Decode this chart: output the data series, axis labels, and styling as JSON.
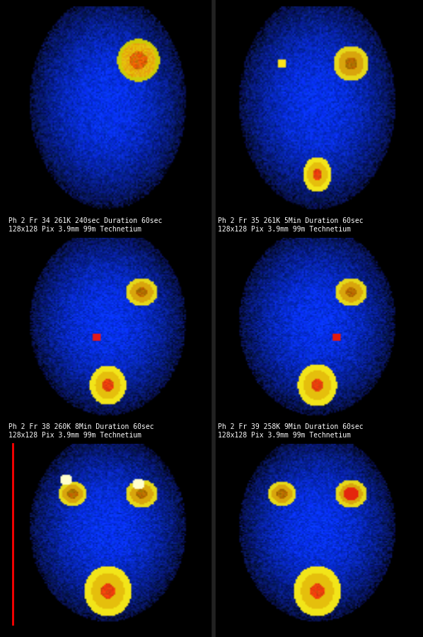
{
  "background_color": "#000000",
  "panel_labels": [
    "Ph 2 Fr 34 261K 240sec Duration 60sec\n128x128 Pix 3.9mm 99m Technetium",
    "Ph 2 Fr 35 261K 5Min Duration 60sec\n128x128 Pix 3.9mm 99m Technetium",
    "Ph 2 Fr 38 260K 8Min Duration 60sec\n128x128 Pix 3.9mm 99m Technetium",
    "Ph 2 Fr 39 258K 9Min Duration 60sec\n128x128 Pix 3.9mm 99m Technetium",
    "",
    ""
  ],
  "label_color": "#ffffff",
  "label_fontsize": 7,
  "separator_color": "#222222",
  "red_line_color": "#ff0000",
  "grid_rows": 3,
  "grid_cols": 2,
  "bladder_fills": [
    0.0,
    0.3,
    0.5,
    0.6,
    0.85,
    0.9
  ],
  "kidney_positions": [
    [
      [
        0.35,
        0.26
      ],
      [
        0.65,
        0.26
      ]
    ],
    [
      [
        0.33,
        0.28
      ],
      [
        0.67,
        0.28
      ]
    ],
    [
      [
        0.33,
        0.3
      ],
      [
        0.67,
        0.3
      ]
    ],
    [
      [
        0.33,
        0.3
      ],
      [
        0.67,
        0.3
      ]
    ],
    [
      [
        0.33,
        0.28
      ],
      [
        0.67,
        0.28
      ]
    ],
    [
      [
        0.33,
        0.28
      ],
      [
        0.67,
        0.28
      ]
    ]
  ]
}
